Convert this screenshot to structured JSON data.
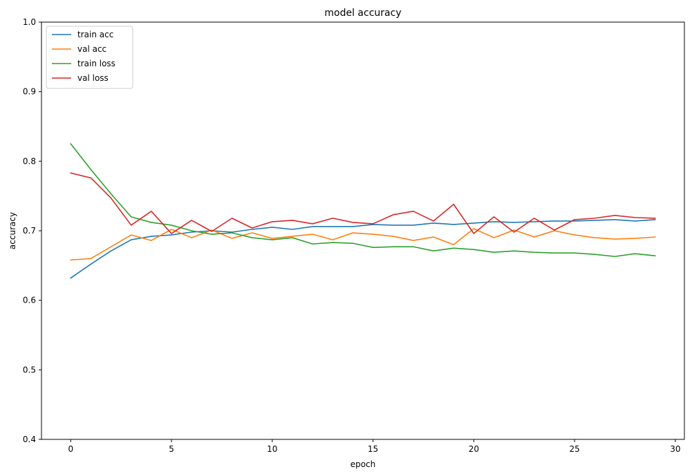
{
  "chart_data": {
    "type": "line",
    "title": "model accuracy",
    "xlabel": "epoch",
    "ylabel": "accuracy",
    "xlim": [
      -1.45,
      30.45
    ],
    "ylim": [
      0.4,
      1.0
    ],
    "xticks": [
      0,
      5,
      10,
      15,
      20,
      25,
      30
    ],
    "yticks": [
      0.4,
      0.5,
      0.6,
      0.7,
      0.8,
      0.9,
      1.0
    ],
    "grid": false,
    "legend_position": "top-left",
    "x": [
      0,
      1,
      2,
      3,
      4,
      5,
      6,
      7,
      8,
      9,
      10,
      11,
      12,
      13,
      14,
      15,
      16,
      17,
      18,
      19,
      20,
      21,
      22,
      23,
      24,
      25,
      26,
      27,
      28,
      29
    ],
    "series": [
      {
        "name": "train acc",
        "color": "#1f77b4",
        "values": [
          0.632,
          0.652,
          0.671,
          0.687,
          0.692,
          0.694,
          0.698,
          0.7,
          0.698,
          0.702,
          0.705,
          0.702,
          0.706,
          0.706,
          0.706,
          0.709,
          0.708,
          0.708,
          0.711,
          0.709,
          0.711,
          0.713,
          0.712,
          0.713,
          0.714,
          0.714,
          0.715,
          0.716,
          0.714,
          0.716
        ]
      },
      {
        "name": "val acc",
        "color": "#ff7f0e",
        "values": [
          0.658,
          0.66,
          0.677,
          0.694,
          0.686,
          0.702,
          0.69,
          0.701,
          0.689,
          0.697,
          0.689,
          0.692,
          0.695,
          0.687,
          0.697,
          0.695,
          0.692,
          0.686,
          0.691,
          0.68,
          0.703,
          0.69,
          0.701,
          0.691,
          0.7,
          0.694,
          0.69,
          0.688,
          0.689,
          0.691
        ]
      },
      {
        "name": "train loss",
        "color": "#2ca02c",
        "values": [
          0.825,
          0.788,
          0.753,
          0.72,
          0.712,
          0.708,
          0.7,
          0.695,
          0.697,
          0.69,
          0.687,
          0.69,
          0.681,
          0.683,
          0.682,
          0.676,
          0.677,
          0.677,
          0.671,
          0.675,
          0.673,
          0.669,
          0.671,
          0.669,
          0.668,
          0.668,
          0.666,
          0.663,
          0.667,
          0.664
        ]
      },
      {
        "name": "val loss",
        "color": "#d62728",
        "values": [
          0.783,
          0.776,
          0.747,
          0.708,
          0.728,
          0.696,
          0.715,
          0.699,
          0.718,
          0.704,
          0.713,
          0.715,
          0.71,
          0.718,
          0.712,
          0.71,
          0.723,
          0.728,
          0.714,
          0.738,
          0.696,
          0.72,
          0.698,
          0.718,
          0.701,
          0.716,
          0.718,
          0.722,
          0.719,
          0.718
        ]
      }
    ]
  }
}
